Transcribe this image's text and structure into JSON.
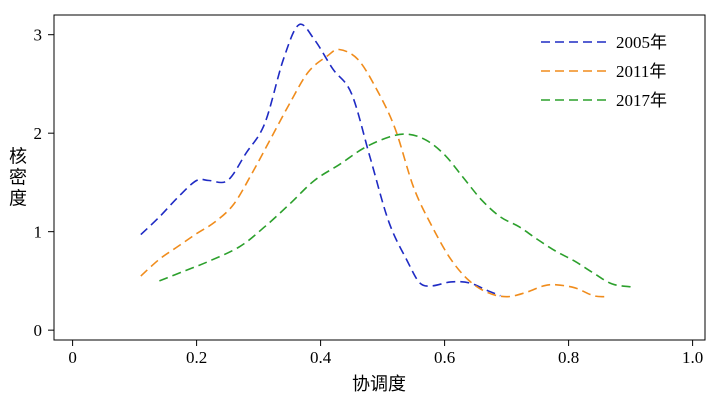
{
  "chart_data": {
    "type": "line",
    "xlabel": "协调度",
    "ylabel": "核密度",
    "xlim": [
      -0.03,
      1.02
    ],
    "ylim": [
      -0.1,
      3.2
    ],
    "x_ticks": [
      0,
      0.2,
      0.4,
      0.6,
      0.8,
      1.0
    ],
    "x_tick_labels": [
      "0",
      "0.2",
      "0.4",
      "0.6",
      "0.8",
      "1.0"
    ],
    "y_ticks": [
      0,
      1,
      2,
      3
    ],
    "y_tick_labels": [
      "0",
      "1",
      "2",
      "3"
    ],
    "grid": false,
    "legend_position": "top-right",
    "line_style": "dashed",
    "series": [
      {
        "name": "2005年",
        "color": "#1f2bc4",
        "x": [
          0.11,
          0.14,
          0.17,
          0.2,
          0.22,
          0.25,
          0.28,
          0.31,
          0.34,
          0.365,
          0.39,
          0.42,
          0.45,
          0.48,
          0.51,
          0.54,
          0.56,
          0.58,
          0.61,
          0.64,
          0.67,
          0.69
        ],
        "y": [
          0.97,
          1.15,
          1.35,
          1.52,
          1.52,
          1.52,
          1.8,
          2.1,
          2.75,
          3.1,
          2.95,
          2.65,
          2.4,
          1.75,
          1.1,
          0.7,
          0.48,
          0.45,
          0.49,
          0.48,
          0.4,
          0.35
        ]
      },
      {
        "name": "2011年",
        "color": "#f08c1c",
        "x": [
          0.11,
          0.14,
          0.17,
          0.2,
          0.23,
          0.26,
          0.29,
          0.32,
          0.35,
          0.38,
          0.41,
          0.43,
          0.46,
          0.49,
          0.52,
          0.55,
          0.58,
          0.61,
          0.64,
          0.67,
          0.7,
          0.73,
          0.76,
          0.78,
          0.81,
          0.84,
          0.86
        ],
        "y": [
          0.55,
          0.72,
          0.85,
          0.98,
          1.1,
          1.28,
          1.6,
          1.95,
          2.3,
          2.62,
          2.78,
          2.85,
          2.75,
          2.45,
          2.05,
          1.45,
          1.05,
          0.72,
          0.5,
          0.38,
          0.34,
          0.38,
          0.45,
          0.46,
          0.43,
          0.35,
          0.34
        ]
      },
      {
        "name": "2017年",
        "color": "#2ca02c",
        "x": [
          0.14,
          0.18,
          0.22,
          0.27,
          0.31,
          0.35,
          0.39,
          0.43,
          0.47,
          0.51,
          0.54,
          0.57,
          0.6,
          0.63,
          0.66,
          0.69,
          0.72,
          0.75,
          0.78,
          0.81,
          0.84,
          0.87,
          0.9
        ],
        "y": [
          0.5,
          0.6,
          0.7,
          0.85,
          1.05,
          1.28,
          1.52,
          1.68,
          1.85,
          1.96,
          1.99,
          1.93,
          1.78,
          1.55,
          1.32,
          1.15,
          1.05,
          0.92,
          0.8,
          0.7,
          0.58,
          0.47,
          0.44
        ]
      }
    ]
  }
}
